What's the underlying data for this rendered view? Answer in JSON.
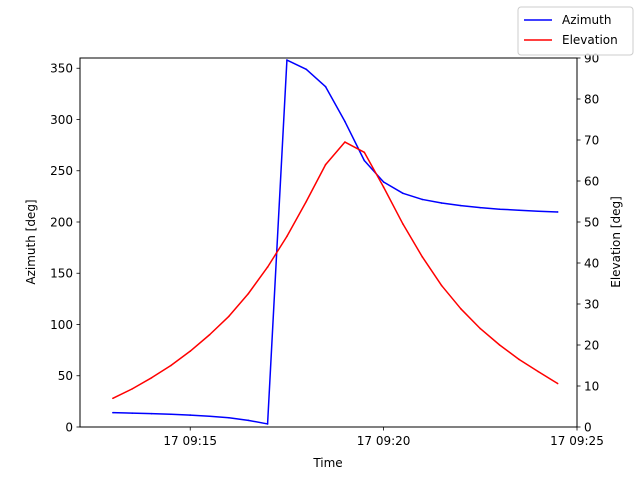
{
  "chart_data": {
    "type": "line",
    "title": "",
    "xlabel": "Time",
    "x_ticks": [
      "17 09:15",
      "17 09:20",
      "17 09:25"
    ],
    "x_tick_minutes": [
      15,
      20,
      25
    ],
    "x_range_minutes": [
      12.15,
      25.0
    ],
    "x": [
      13.0,
      13.5,
      14.0,
      14.5,
      15.0,
      15.5,
      16.0,
      16.5,
      17.0,
      17.5,
      18.0,
      18.5,
      19.0,
      19.5,
      20.0,
      20.5,
      21.0,
      21.5,
      22.0,
      22.5,
      23.0,
      23.5,
      24.0,
      24.5
    ],
    "y_left": {
      "label": "Azimuth [deg]",
      "range": [
        0,
        360
      ],
      "ticks": [
        0,
        50,
        100,
        150,
        200,
        250,
        300,
        350
      ]
    },
    "y_right": {
      "label": "Elevation [deg]",
      "range": [
        0,
        90
      ],
      "ticks": [
        0,
        10,
        20,
        30,
        40,
        50,
        60,
        70,
        80,
        90
      ]
    },
    "series": [
      {
        "name": "Azimuth",
        "axis": "left",
        "color": "#0000ff",
        "values": [
          14.0,
          13.5,
          13.0,
          12.4,
          11.6,
          10.5,
          9.0,
          6.5,
          3.0,
          358.0,
          349.0,
          332.0,
          298.0,
          260.0,
          239.0,
          228.0,
          222.0,
          218.5,
          216.0,
          214.0,
          212.5,
          211.5,
          210.5,
          209.8
        ]
      },
      {
        "name": "Elevation",
        "axis": "right",
        "color": "#ff0000",
        "values": [
          7.0,
          9.3,
          12.0,
          15.0,
          18.5,
          22.5,
          27.0,
          32.5,
          39.0,
          46.5,
          55.0,
          64.0,
          69.5,
          67.0,
          58.5,
          49.5,
          41.5,
          34.5,
          28.8,
          24.0,
          20.0,
          16.5,
          13.5,
          10.6
        ]
      }
    ],
    "legend_position": "top-right, above plot",
    "grid": false
  }
}
